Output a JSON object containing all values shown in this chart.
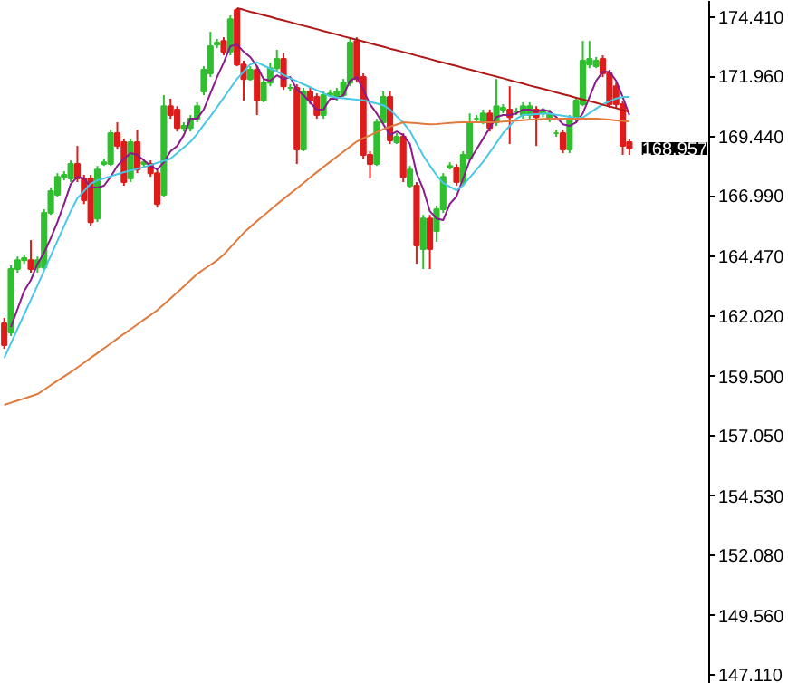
{
  "chart_data": {
    "type": "candlestick",
    "categories": [
      null,
      null,
      null,
      null,
      null,
      null,
      null,
      null,
      null,
      null,
      null,
      null,
      null,
      null,
      null,
      null,
      null,
      null,
      null,
      null,
      null,
      null,
      null,
      null,
      null,
      null,
      null,
      null,
      null,
      null,
      null,
      null,
      null,
      null,
      null,
      null,
      null,
      null,
      null,
      null,
      null,
      null,
      null,
      null,
      null,
      null,
      null,
      null,
      null,
      null,
      null,
      null,
      null,
      null,
      null,
      null,
      null,
      null,
      null,
      null,
      null,
      null,
      null,
      null,
      null,
      null,
      null,
      null,
      null,
      null,
      null,
      null,
      null,
      null,
      null,
      null,
      null,
      null,
      null,
      null,
      null,
      null,
      null,
      null,
      null,
      null,
      null,
      null,
      null,
      null,
      null,
      null,
      null,
      null,
      null
    ],
    "ohlc": [
      [
        161.7,
        161.93,
        160.65,
        160.8
      ],
      [
        161.33,
        164.11,
        161.18,
        163.96
      ],
      [
        163.96,
        164.48,
        163.81,
        164.33
      ],
      [
        164.33,
        164.56,
        164.18,
        164.41
      ],
      [
        164.33,
        165.16,
        163.81,
        163.96
      ],
      [
        164.03,
        164.48,
        163.81,
        164.33
      ],
      [
        164.03,
        166.44,
        163.96,
        166.29
      ],
      [
        166.29,
        167.34,
        166.21,
        167.19
      ],
      [
        167.04,
        167.94,
        166.97,
        167.79
      ],
      [
        167.79,
        168.02,
        167.64,
        167.87
      ],
      [
        167.72,
        168.47,
        167.57,
        168.32
      ],
      [
        168.32,
        169.07,
        167.57,
        167.72
      ],
      [
        167.72,
        167.87,
        166.66,
        166.82
      ],
      [
        167.72,
        167.87,
        165.76,
        165.91
      ],
      [
        166.06,
        168.24,
        165.91,
        168.09
      ],
      [
        168.32,
        168.54,
        168.24,
        168.39
      ],
      [
        168.32,
        169.75,
        168.24,
        169.6
      ],
      [
        169.6,
        170.05,
        168.92,
        169.07
      ],
      [
        169.22,
        169.37,
        167.42,
        167.57
      ],
      [
        167.72,
        169.37,
        167.57,
        169.22
      ],
      [
        169.22,
        169.75,
        167.94,
        168.09
      ],
      [
        168.32,
        168.54,
        168.17,
        168.39
      ],
      [
        168.32,
        168.47,
        167.79,
        167.94
      ],
      [
        167.94,
        168.09,
        166.51,
        166.66
      ],
      [
        167.04,
        171.18,
        166.97,
        170.72
      ],
      [
        170.72,
        171.03,
        170.2,
        170.35
      ],
      [
        170.58,
        170.72,
        169.67,
        169.82
      ],
      [
        169.82,
        170.05,
        169.67,
        169.9
      ],
      [
        169.82,
        170.35,
        169.67,
        170.2
      ],
      [
        170.2,
        170.88,
        170.05,
        170.72
      ],
      [
        171.33,
        172.38,
        171.18,
        172.23
      ],
      [
        172.08,
        173.81,
        171.93,
        173.21
      ],
      [
        173.28,
        173.51,
        173.13,
        173.36
      ],
      [
        173.43,
        173.58,
        172.83,
        172.98
      ],
      [
        172.98,
        174.49,
        172.83,
        174.33
      ],
      [
        174.71,
        174.79,
        172.38,
        172.45
      ],
      [
        172.45,
        172.61,
        170.95,
        171.85
      ],
      [
        171.85,
        172.38,
        171.78,
        172.23
      ],
      [
        172.23,
        172.38,
        170.35,
        170.95
      ],
      [
        170.95,
        171.85,
        170.88,
        171.7
      ],
      [
        171.7,
        172.53,
        171.55,
        172.3
      ],
      [
        172.3,
        173.06,
        172.15,
        172.68
      ],
      [
        172.68,
        172.91,
        171.4,
        171.55
      ],
      [
        171.48,
        171.63,
        171.33,
        171.48
      ],
      [
        171.48,
        171.63,
        168.32,
        168.92
      ],
      [
        168.92,
        171.48,
        168.85,
        171.33
      ],
      [
        171.33,
        171.48,
        170.8,
        170.95
      ],
      [
        171.1,
        171.25,
        170.2,
        170.35
      ],
      [
        170.35,
        171.33,
        170.2,
        171.18
      ],
      [
        171.18,
        171.4,
        171.1,
        171.25
      ],
      [
        171.1,
        171.48,
        170.95,
        171.33
      ],
      [
        171.18,
        171.85,
        171.1,
        171.7
      ],
      [
        171.7,
        173.51,
        171.55,
        173.36
      ],
      [
        173.43,
        173.58,
        171.7,
        171.85
      ],
      [
        171.93,
        172.08,
        168.54,
        168.7
      ],
      [
        168.7,
        168.85,
        167.72,
        168.32
      ],
      [
        168.32,
        170.2,
        168.24,
        170.05
      ],
      [
        170.05,
        171.33,
        169.97,
        171.1
      ],
      [
        171.1,
        171.33,
        169.15,
        169.3
      ],
      [
        169.22,
        169.6,
        169.15,
        169.45
      ],
      [
        169.45,
        169.6,
        167.57,
        167.79
      ],
      [
        167.42,
        168.24,
        167.34,
        168.09
      ],
      [
        167.42,
        167.57,
        164.18,
        164.94
      ],
      [
        164.79,
        166.21,
        163.96,
        166.06
      ],
      [
        166.06,
        166.21,
        163.96,
        164.79
      ],
      [
        165.54,
        166.59,
        165.09,
        166.44
      ],
      [
        166.44,
        167.94,
        166.29,
        167.79
      ],
      [
        168.17,
        168.39,
        168.09,
        168.24
      ],
      [
        168.17,
        168.32,
        167.42,
        167.57
      ],
      [
        167.57,
        168.85,
        167.42,
        168.7
      ],
      [
        168.54,
        170.42,
        168.47,
        170.05
      ],
      [
        170.2,
        170.35,
        170.05,
        170.2
      ],
      [
        170.05,
        170.58,
        169.97,
        170.42
      ],
      [
        170.42,
        170.58,
        169.67,
        169.82
      ],
      [
        170.05,
        171.85,
        169.9,
        170.72
      ],
      [
        170.58,
        170.8,
        170.42,
        170.65
      ],
      [
        170.58,
        171.55,
        169.15,
        170.27
      ],
      [
        170.5,
        170.65,
        170.35,
        170.5
      ],
      [
        170.35,
        170.88,
        170.2,
        170.72
      ],
      [
        170.35,
        170.88,
        170.2,
        170.72
      ],
      [
        170.58,
        170.72,
        169.07,
        170.27
      ],
      [
        170.42,
        170.65,
        170.27,
        170.5
      ],
      [
        170.2,
        170.58,
        170.05,
        170.42
      ],
      [
        169.6,
        169.75,
        169.45,
        169.6
      ],
      [
        169.6,
        169.75,
        168.77,
        168.92
      ],
      [
        168.92,
        170.35,
        168.77,
        170.2
      ],
      [
        170.2,
        171.1,
        170.05,
        170.95
      ],
      [
        170.8,
        173.43,
        170.72,
        172.61
      ],
      [
        172.45,
        173.43,
        172.3,
        172.68
      ],
      [
        172.38,
        172.76,
        172.3,
        172.61
      ],
      [
        172.68,
        172.83,
        171.93,
        172.08
      ],
      [
        172.08,
        172.23,
        170.65,
        170.8
      ],
      [
        171.55,
        171.7,
        170.65,
        170.8
      ],
      [
        170.8,
        170.95,
        168.7,
        169.07
      ],
      [
        169.22,
        169.37,
        168.7,
        168.96
      ]
    ],
    "colors": [
      "#dd1c1c",
      "#2fbf2f",
      "#2fbf2f",
      "#2fbf2f",
      "#dd1c1c",
      "#2fbf2f",
      "#2fbf2f",
      "#2fbf2f",
      "#2fbf2f",
      "#2fbf2f",
      "#2fbf2f",
      "#dd1c1c",
      "#dd1c1c",
      "#dd1c1c",
      "#2fbf2f",
      "#2fbf2f",
      "#2fbf2f",
      "#dd1c1c",
      "#dd1c1c",
      "#2fbf2f",
      "#dd1c1c",
      "#2fbf2f",
      "#dd1c1c",
      "#dd1c1c",
      "#2fbf2f",
      "#dd1c1c",
      "#dd1c1c",
      "#2fbf2f",
      "#2fbf2f",
      "#2fbf2f",
      "#2fbf2f",
      "#2fbf2f",
      "#2fbf2f",
      "#dd1c1c",
      "#2fbf2f",
      "#dd1c1c",
      "#dd1c1c",
      "#2fbf2f",
      "#dd1c1c",
      "#2fbf2f",
      "#2fbf2f",
      "#2fbf2f",
      "#dd1c1c",
      "#2fbf2f",
      "#dd1c1c",
      "#2fbf2f",
      "#dd1c1c",
      "#dd1c1c",
      "#2fbf2f",
      "#2fbf2f",
      "#2fbf2f",
      "#2fbf2f",
      "#2fbf2f",
      "#dd1c1c",
      "#dd1c1c",
      "#dd1c1c",
      "#2fbf2f",
      "#2fbf2f",
      "#dd1c1c",
      "#2fbf2f",
      "#dd1c1c",
      "#2fbf2f",
      "#dd1c1c",
      "#2fbf2f",
      "#dd1c1c",
      "#2fbf2f",
      "#2fbf2f",
      "#2fbf2f",
      "#dd1c1c",
      "#2fbf2f",
      "#2fbf2f",
      "#2fbf2f",
      "#2fbf2f",
      "#dd1c1c",
      "#2fbf2f",
      "#2fbf2f",
      "#dd1c1c",
      "#2fbf2f",
      "#2fbf2f",
      "#2fbf2f",
      "#dd1c1c",
      "#2fbf2f",
      "#2fbf2f",
      "#2fbf2f",
      "#dd1c1c",
      "#2fbf2f",
      "#2fbf2f",
      "#2fbf2f",
      "#2fbf2f",
      "#2fbf2f",
      "#dd1c1c",
      "#dd1c1c",
      "#dd1c1c",
      "#dd1c1c",
      "#dd1c1c"
    ],
    "series": [
      {
        "type": "line",
        "color": "#8b1a8b",
        "values": [
          null,
          161.55,
          162.3,
          163.05,
          163.5,
          164.18,
          164.64,
          165.24,
          165.91,
          166.66,
          167.49,
          167.79,
          167.72,
          167.34,
          167.34,
          167.42,
          167.79,
          168.24,
          168.54,
          168.77,
          168.7,
          168.47,
          168.24,
          168.09,
          168.39,
          168.85,
          169.07,
          169.52,
          170.2,
          170.2,
          170.58,
          171.25,
          171.93,
          172.53,
          173.21,
          173.28,
          172.98,
          172.76,
          172.38,
          171.85,
          171.78,
          172.0,
          171.85,
          171.93,
          171.4,
          171.18,
          170.88,
          170.58,
          170.58,
          171.03,
          171.03,
          171.18,
          171.78,
          171.93,
          171.4,
          170.8,
          170.42,
          169.97,
          169.52,
          169.67,
          169.52,
          169.15,
          167.94,
          167.27,
          166.36,
          166.06,
          165.99,
          166.66,
          166.97,
          167.72,
          168.47,
          168.92,
          169.37,
          169.82,
          170.27,
          170.35,
          170.35,
          170.42,
          170.58,
          170.58,
          170.5,
          170.58,
          170.5,
          170.27,
          169.97,
          169.9,
          170.05,
          170.42,
          171.1,
          171.78,
          172.15,
          172.15,
          171.78,
          171.1,
          170.35
        ]
      },
      {
        "type": "line",
        "color": "#48c8e8",
        "values": [
          160.27,
          160.87,
          161.48,
          162.08,
          162.68,
          163.28,
          163.9,
          164.51,
          165.13,
          165.74,
          166.36,
          166.9,
          167.2,
          167.5,
          167.64,
          167.72,
          167.81,
          167.9,
          167.98,
          168.05,
          168.12,
          168.19,
          168.28,
          168.37,
          168.45,
          168.54,
          168.77,
          169.01,
          169.24,
          169.57,
          169.94,
          170.3,
          170.68,
          171.07,
          171.46,
          171.85,
          172.15,
          172.46,
          172.54,
          172.41,
          172.28,
          172.15,
          172.02,
          171.88,
          171.76,
          171.63,
          171.51,
          171.38,
          171.26,
          171.13,
          171.08,
          171.05,
          171.02,
          170.99,
          170.96,
          170.9,
          170.83,
          170.76,
          170.58,
          170.3,
          170.03,
          169.69,
          169.18,
          168.67,
          168.25,
          167.86,
          167.53,
          167.38,
          167.23,
          167.43,
          167.76,
          168.08,
          168.41,
          168.8,
          169.19,
          169.6,
          169.9,
          170.2,
          170.36,
          170.37,
          170.39,
          170.41,
          170.41,
          170.36,
          170.32,
          170.28,
          170.23,
          170.25,
          170.43,
          170.62,
          170.8,
          170.92,
          171.04,
          171.1,
          171.1
        ]
      },
      {
        "type": "line",
        "color": "#e07a3c",
        "values": [
          158.32,
          158.41,
          158.5,
          158.59,
          158.68,
          158.77,
          158.95,
          159.14,
          159.32,
          159.5,
          159.68,
          159.87,
          160.07,
          160.27,
          160.47,
          160.67,
          160.87,
          161.07,
          161.27,
          161.46,
          161.66,
          161.86,
          162.05,
          162.25,
          162.49,
          162.74,
          162.99,
          163.24,
          163.5,
          163.75,
          163.95,
          164.13,
          164.32,
          164.56,
          164.86,
          165.16,
          165.46,
          165.71,
          165.95,
          166.18,
          166.41,
          166.65,
          166.87,
          167.09,
          167.31,
          167.53,
          167.76,
          167.98,
          168.2,
          168.41,
          168.62,
          168.83,
          169.04,
          169.25,
          169.39,
          169.51,
          169.64,
          169.76,
          169.87,
          169.96,
          170.05,
          170.03,
          170.01,
          169.99,
          169.97,
          169.98,
          170.0,
          170.02,
          170.04,
          170.05,
          170.05,
          170.05,
          170.05,
          170.05,
          170.06,
          170.08,
          170.1,
          170.12,
          170.14,
          170.16,
          170.17,
          170.19,
          170.2,
          170.2,
          170.2,
          170.2,
          170.2,
          170.2,
          170.2,
          170.2,
          170.18,
          170.16,
          170.13,
          170.11,
          170.09
        ]
      },
      {
        "type": "line",
        "color": "#b01818",
        "values": [
          null,
          null,
          null,
          null,
          null,
          null,
          null,
          null,
          null,
          null,
          null,
          null,
          null,
          null,
          null,
          null,
          null,
          null,
          null,
          null,
          null,
          null,
          null,
          null,
          null,
          null,
          null,
          null,
          null,
          null,
          null,
          null,
          null,
          null,
          null,
          174.79,
          174.72,
          174.64,
          174.57,
          174.5,
          174.43,
          174.35,
          174.28,
          174.21,
          174.13,
          174.06,
          173.99,
          173.92,
          173.84,
          173.77,
          173.7,
          173.62,
          173.55,
          173.48,
          173.41,
          173.33,
          173.26,
          173.19,
          173.11,
          173.04,
          172.97,
          172.9,
          172.82,
          172.75,
          172.68,
          172.6,
          172.53,
          172.46,
          172.39,
          172.31,
          172.24,
          172.17,
          172.09,
          172.02,
          171.95,
          171.88,
          171.8,
          171.73,
          171.66,
          171.58,
          171.51,
          171.44,
          171.37,
          171.29,
          171.22,
          171.15,
          171.07,
          171.0,
          170.93,
          170.86,
          170.78,
          170.71,
          170.64,
          170.56,
          170.49
        ]
      }
    ],
    "ylim": [
      146.74,
      175.09
    ],
    "yticks": [
      {
        "value": 174.41,
        "label": "174.410"
      },
      {
        "value": 171.96,
        "label": "171.960"
      },
      {
        "value": 169.44,
        "label": "169.440"
      },
      {
        "value": 166.99,
        "label": "166.990"
      },
      {
        "value": 164.47,
        "label": "164.470"
      },
      {
        "value": 162.02,
        "label": "162.020"
      },
      {
        "value": 159.5,
        "label": "159.500"
      },
      {
        "value": 157.05,
        "label": "157.050"
      },
      {
        "value": 154.53,
        "label": "154.530"
      },
      {
        "value": 152.08,
        "label": "152.080"
      },
      {
        "value": 149.56,
        "label": "149.560"
      },
      {
        "value": 147.11,
        "label": "147.110"
      }
    ],
    "tick_labels": "y",
    "annotations": [
      "168.957"
    ]
  }
}
